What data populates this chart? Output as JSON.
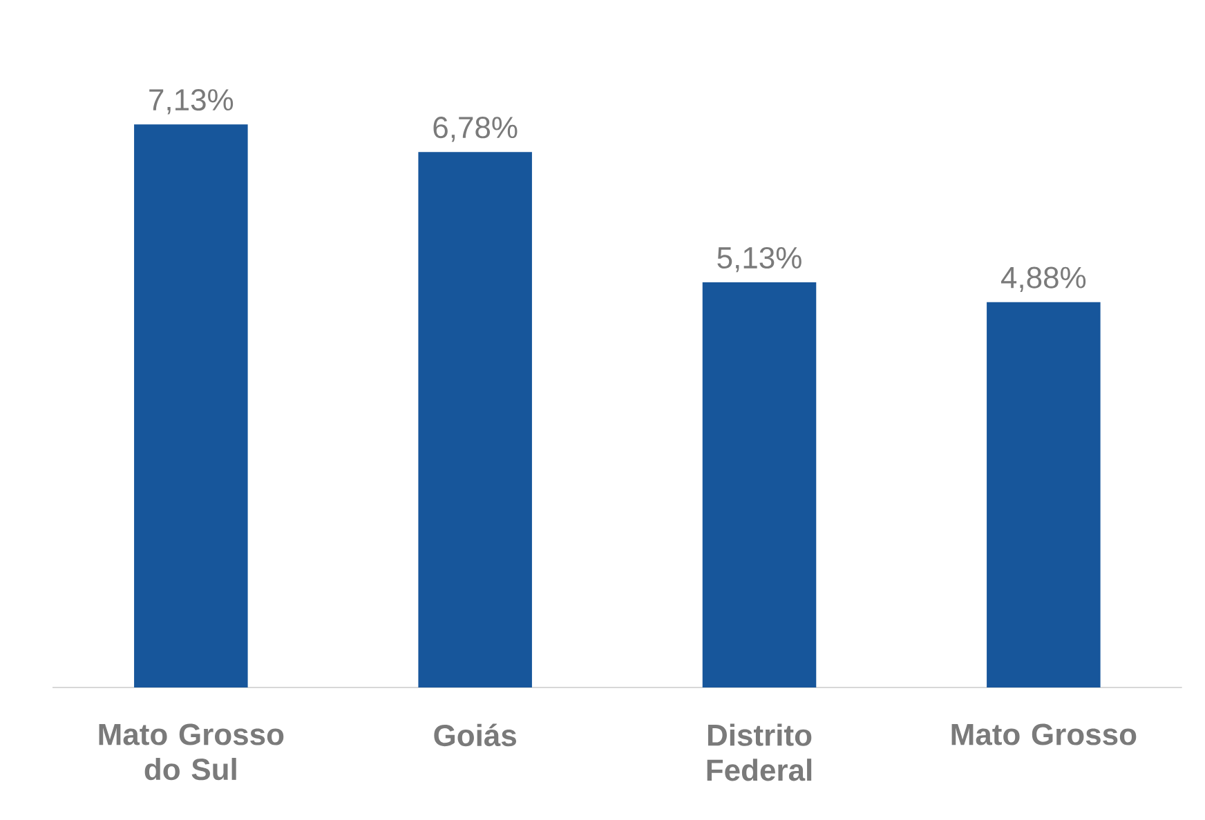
{
  "chart_data": {
    "type": "bar",
    "categories": [
      "Mato Grosso do Sul",
      "Goiás",
      "Distrito Federal",
      "Mato Grosso"
    ],
    "values": [
      7.13,
      6.78,
      5.13,
      4.88
    ],
    "value_labels": [
      "7,13%",
      "6,78%",
      "5,13%",
      "4,88%"
    ],
    "color": "#17569b"
  }
}
